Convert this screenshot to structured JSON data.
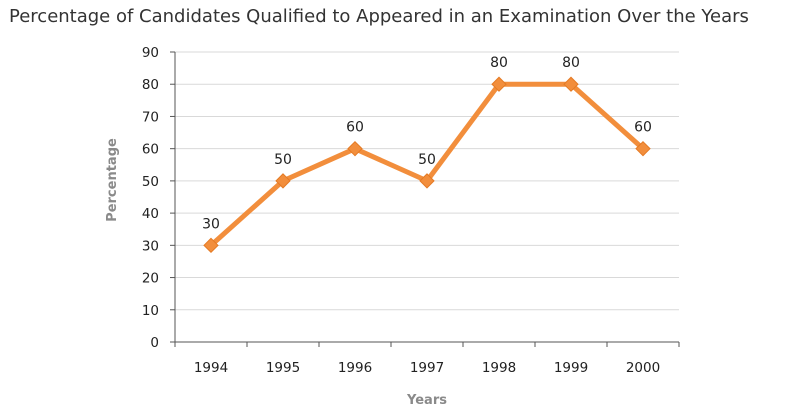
{
  "chart_data": {
    "type": "line",
    "title": "Percentage of Candidates Qualified to Appeared in an Examination Over the Years",
    "xlabel": "Years",
    "ylabel": "Percentage",
    "categories": [
      "1994",
      "1995",
      "1996",
      "1997",
      "1998",
      "1999",
      "2000"
    ],
    "series": [
      {
        "values": [
          30,
          50,
          60,
          50,
          80,
          80,
          60
        ],
        "color": "#f28e3c"
      }
    ],
    "data_labels": [
      "30",
      "50",
      "60",
      "50",
      "80",
      "80",
      "60"
    ],
    "ylim": [
      0,
      90
    ],
    "yticks": [
      0,
      10,
      20,
      30,
      40,
      50,
      60,
      70,
      80,
      90
    ],
    "ytick_labels": [
      "0",
      "10",
      "20",
      "30",
      "40",
      "50",
      "60",
      "70",
      "80",
      "90"
    ],
    "grid": true,
    "legend": "none",
    "colors": {
      "line": "#f28e3c",
      "marker": "#f28e3c",
      "grid": "#d9d9d9",
      "axis": "#555555"
    }
  }
}
